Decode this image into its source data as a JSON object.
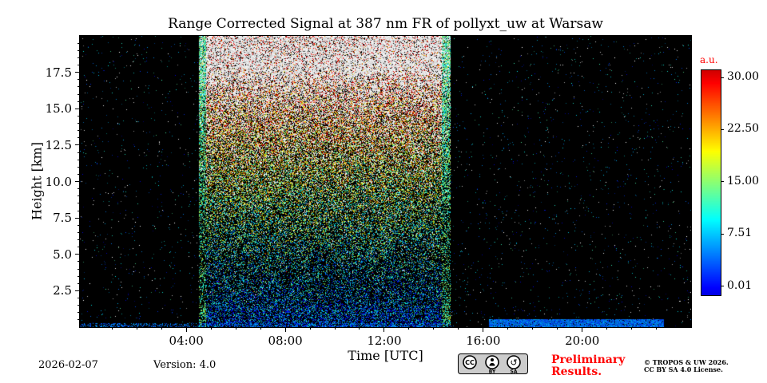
{
  "figure": {
    "title": "Range Corrected Signal at 387 nm FR of pollyxt_uw at Warsaw",
    "xlabel": "Time [UTC]",
    "ylabel": "Height [km]"
  },
  "chart_data": {
    "type": "heatmap",
    "title": "Range Corrected Signal at 387 nm FR of pollyxt_uw at Warsaw",
    "xlabel": "Time [UTC]",
    "ylabel": "Height [km]",
    "x_range_hours": [
      -0.3,
      24.4
    ],
    "y_range_km": [
      0,
      20
    ],
    "x_ticks": [
      {
        "hour": 4,
        "label": "04:00"
      },
      {
        "hour": 8,
        "label": "08:00"
      },
      {
        "hour": 12,
        "label": "12:00"
      },
      {
        "hour": 16,
        "label": "16:00"
      },
      {
        "hour": 20,
        "label": "20:00"
      }
    ],
    "y_ticks": [
      {
        "km": 2.5,
        "label": "2.5"
      },
      {
        "km": 5.0,
        "label": "5.0"
      },
      {
        "km": 7.5,
        "label": "7.5"
      },
      {
        "km": 10.0,
        "label": "10.0"
      },
      {
        "km": 12.5,
        "label": "12.5"
      },
      {
        "km": 15.0,
        "label": "15.0"
      },
      {
        "km": 17.5,
        "label": "17.5"
      }
    ],
    "background_color": "#000000",
    "colorbar": {
      "label": "a.u.",
      "label_color": "#ff0000",
      "ticks": [
        "30.00",
        "22.50",
        "15.00",
        "7.51",
        "0.01"
      ],
      "vmin": 0.01,
      "vmax": 30.0,
      "colormap": "jet"
    },
    "daylight_noise_region": {
      "start_hour": 4.5,
      "end_hour": 14.65,
      "edge_width_hours": 0.3,
      "description": "dense solar-background speckle: blue near ground, green/yellow mid-altitude, saturated white at top"
    },
    "ground_signal_bands": [
      {
        "start_hour": -0.3,
        "end_hour": 14.7,
        "top_km": 0.3,
        "density": 0.35
      },
      {
        "start_hour": 16.2,
        "end_hour": 23.3,
        "top_km": 0.55,
        "density": 0.92
      }
    ],
    "sparse_noise_density": 0.013
  },
  "footer": {
    "date": "2026-02-07",
    "version": "Version: 4.0",
    "preliminary_line1": "Preliminary",
    "preliminary_line2": "Results.",
    "preliminary_color": "#ff0000",
    "copyright_line1": "© TROPOS & UW 2026.",
    "copyright_line2": "CC BY SA 4.0 License.",
    "cc_badge": {
      "cc": "CC",
      "by": "BY",
      "sa": "SA"
    }
  }
}
